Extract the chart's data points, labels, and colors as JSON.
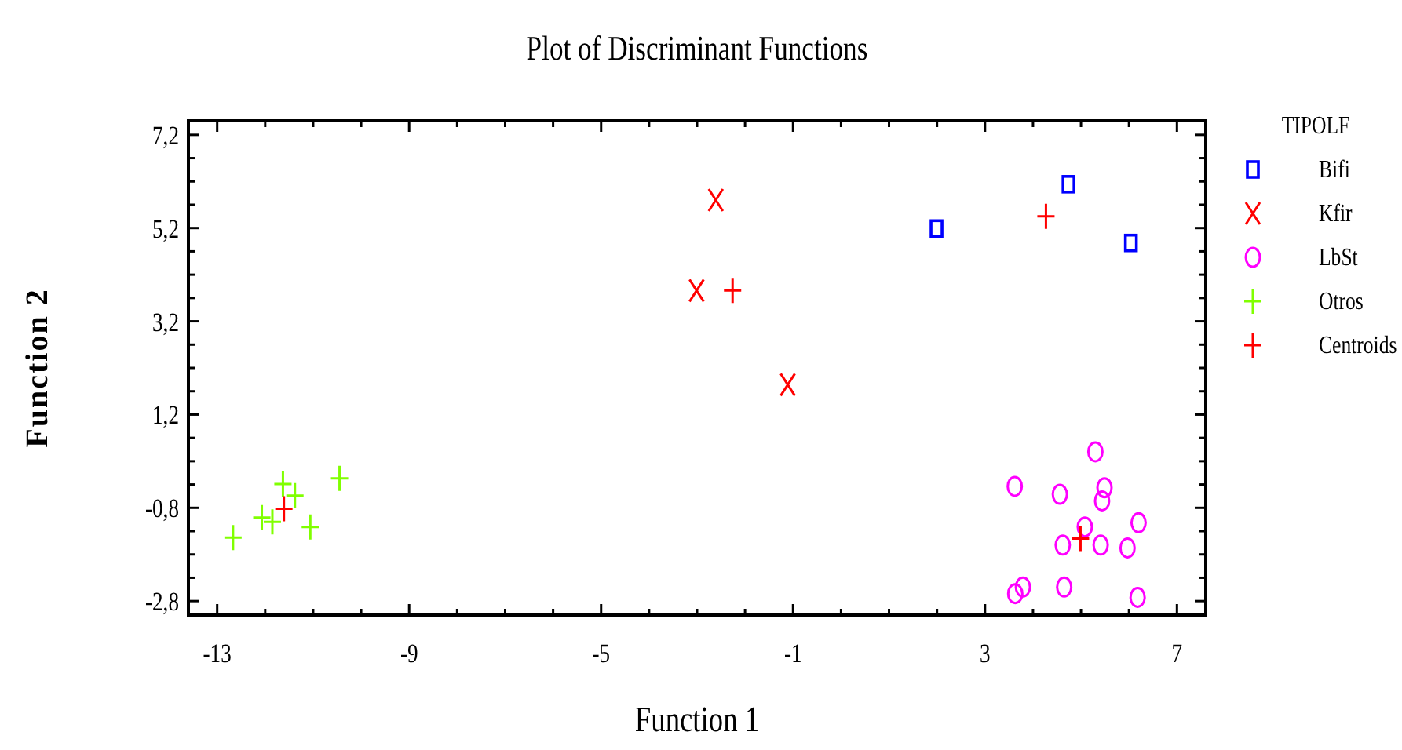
{
  "chart_data": {
    "type": "scatter",
    "title": "Plot of Discriminant Functions",
    "xlabel": "Function 1",
    "ylabel": "Function 2",
    "legend_title": "TIPOLF",
    "legend": "right",
    "grid": false,
    "xlim": [
      -13.6,
      7.6
    ],
    "ylim": [
      -3.1,
      7.5
    ],
    "xticks": [
      -13,
      {
        "value": -12,
        "label": null
      },
      {
        "value": -11,
        "label": null
      },
      {
        "value": -10,
        "label": null
      },
      -9,
      {
        "value": -8,
        "label": null
      },
      {
        "value": -7,
        "label": null
      },
      {
        "value": -6,
        "label": null
      },
      -5,
      {
        "value": -4,
        "label": null
      },
      {
        "value": -3,
        "label": null
      },
      {
        "value": -2,
        "label": null
      },
      -1,
      {
        "value": 0,
        "label": null
      },
      {
        "value": 1,
        "label": null
      },
      {
        "value": 2,
        "label": null
      },
      3,
      {
        "value": 4,
        "label": null
      },
      {
        "value": 5,
        "label": null
      },
      {
        "value": 6,
        "label": null
      },
      7
    ],
    "yticks": [
      {
        "value": -2.8,
        "label": "-2,8"
      },
      {
        "value": -2.3,
        "label": null
      },
      {
        "value": -1.8,
        "label": null
      },
      {
        "value": -1.3,
        "label": null
      },
      {
        "value": -0.8,
        "label": "-0,8"
      },
      {
        "value": -0.3,
        "label": null
      },
      {
        "value": 0.2,
        "label": null
      },
      {
        "value": 0.7,
        "label": null
      },
      {
        "value": 1.2,
        "label": "1,2"
      },
      {
        "value": 1.7,
        "label": null
      },
      {
        "value": 2.2,
        "label": null
      },
      {
        "value": 2.7,
        "label": null
      },
      {
        "value": 3.2,
        "label": "3,2"
      },
      {
        "value": 3.7,
        "label": null
      },
      {
        "value": 4.2,
        "label": null
      },
      {
        "value": 4.7,
        "label": null
      },
      {
        "value": 5.2,
        "label": "5,2"
      },
      {
        "value": 5.7,
        "label": null
      },
      {
        "value": 6.2,
        "label": null
      },
      {
        "value": 6.7,
        "label": null
      },
      {
        "value": 7.2,
        "label": "7,2"
      }
    ],
    "series": [
      {
        "name": "Bifi",
        "color": "#0000ff",
        "marker": "square",
        "x": [
          1.99,
          4.74,
          6.04
        ],
        "values": [
          5.19,
          6.14,
          4.88
        ]
      },
      {
        "name": "Kfir",
        "color": "#ff0000",
        "marker": "cross",
        "x": [
          -2.61,
          -3.01,
          -1.11
        ],
        "values": [
          5.8,
          3.86,
          1.84
        ]
      },
      {
        "name": "LbSt",
        "color": "#ff00ff",
        "marker": "circle",
        "x": [
          5.3,
          3.62,
          4.56,
          5.49,
          5.44,
          5.08,
          4.62,
          5.41,
          5.97,
          6.2,
          3.63,
          3.79,
          4.65,
          6.18
        ],
        "values": [
          0.4,
          -0.34,
          -0.51,
          -0.37,
          -0.65,
          -1.21,
          -1.6,
          -1.6,
          -1.66,
          -1.12,
          -2.64,
          -2.5,
          -2.5,
          -2.72
        ]
      },
      {
        "name": "Otros",
        "color": "#80ff00",
        "marker": "plus",
        "x": [
          -12.67,
          -12.07,
          -11.85,
          -11.63,
          -11.38,
          -11.06,
          -10.45
        ],
        "values": [
          -1.44,
          -1.01,
          -1.1,
          -0.29,
          -0.54,
          -1.21,
          -0.17
        ]
      },
      {
        "name": "Centroids",
        "color": "#ff0000",
        "marker": "plus",
        "x": [
          4.27,
          -2.26,
          4.99,
          -11.61
        ],
        "values": [
          5.45,
          3.86,
          -1.46,
          -0.82
        ]
      }
    ]
  }
}
